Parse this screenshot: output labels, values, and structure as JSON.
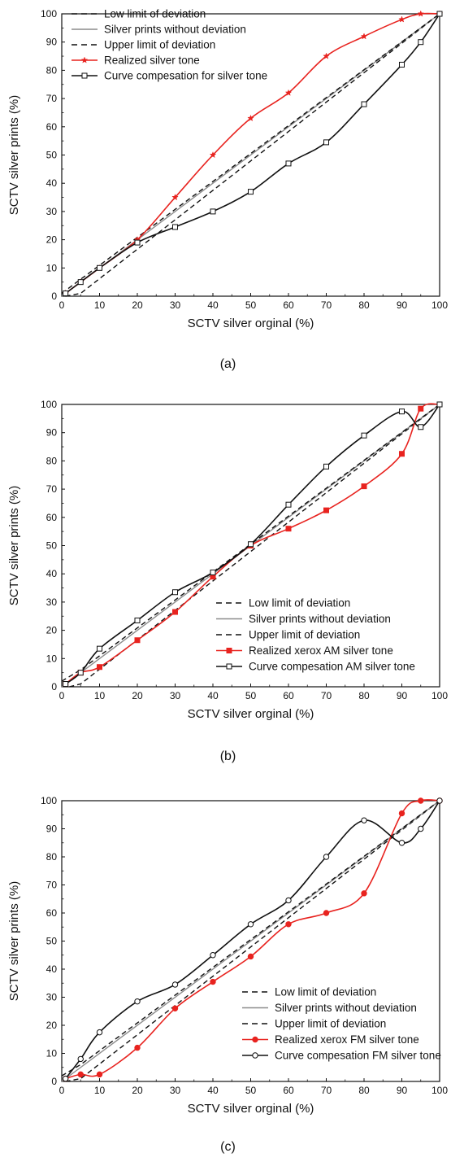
{
  "chart_data": [
    {
      "type": "line",
      "caption": "(a)",
      "xlabel": "SCTV silver orginal (%)",
      "ylabel": "SCTV silver prints (%)",
      "xlim": [
        0,
        100
      ],
      "ylim": [
        0,
        100
      ],
      "xticks": [
        0,
        10,
        20,
        30,
        40,
        50,
        60,
        70,
        80,
        90,
        100
      ],
      "yticks": [
        0,
        10,
        20,
        30,
        40,
        50,
        60,
        70,
        80,
        90,
        100
      ],
      "grid": false,
      "legend_position": "top-left",
      "series": [
        {
          "name": "Low limit of deviation",
          "color": "#111111",
          "style": "dashed",
          "marker": "none",
          "x": [
            1,
            5,
            100
          ],
          "y": [
            0,
            1,
            100
          ]
        },
        {
          "name": "Silver prints without deviation",
          "color": "#8c8c8c",
          "style": "solid",
          "marker": "none",
          "x": [
            0,
            100
          ],
          "y": [
            0,
            100
          ]
        },
        {
          "name": "Upper limit of deviation",
          "color": "#111111",
          "style": "dashed",
          "marker": "none",
          "x": [
            0,
            5,
            100
          ],
          "y": [
            1,
            6,
            100
          ]
        },
        {
          "name": "Realized silver tone",
          "color": "#e8231f",
          "style": "solid",
          "marker": "star",
          "x": [
            1,
            5,
            10,
            20,
            30,
            40,
            50,
            60,
            70,
            80,
            90,
            95,
            100
          ],
          "y": [
            1,
            5,
            10,
            20,
            35,
            50,
            63,
            72,
            85,
            92,
            98,
            100,
            100
          ]
        },
        {
          "name": "Curve compesation for silver tone",
          "color": "#111111",
          "style": "solid",
          "marker": "open-square",
          "x": [
            1,
            5,
            10,
            20,
            30,
            40,
            50,
            60,
            70,
            80,
            90,
            95,
            100
          ],
          "y": [
            1,
            5,
            10,
            19,
            24.5,
            30,
            37,
            47,
            54.5,
            68,
            82,
            90,
            100
          ]
        }
      ]
    },
    {
      "type": "line",
      "caption": "(b)",
      "xlabel": "SCTV silver orginal (%)",
      "ylabel": "SCTV silver prints (%)",
      "xlim": [
        0,
        100
      ],
      "ylim": [
        0,
        100
      ],
      "xticks": [
        0,
        10,
        20,
        30,
        40,
        50,
        60,
        70,
        80,
        90,
        100
      ],
      "yticks": [
        0,
        10,
        20,
        30,
        40,
        50,
        60,
        70,
        80,
        90,
        100
      ],
      "grid": false,
      "legend_position": "bottom-right",
      "series": [
        {
          "name": "Low limit of deviation",
          "color": "#111111",
          "style": "dashed",
          "marker": "none",
          "x": [
            2,
            5,
            100
          ],
          "y": [
            0,
            1,
            100
          ]
        },
        {
          "name": "Silver prints without deviation",
          "color": "#8c8c8c",
          "style": "solid",
          "marker": "none",
          "x": [
            0,
            100
          ],
          "y": [
            0,
            100
          ]
        },
        {
          "name": "Upper limit of deviation",
          "color": "#111111",
          "style": "dashed",
          "marker": "none",
          "x": [
            0,
            5,
            100
          ],
          "y": [
            2,
            6,
            100
          ]
        },
        {
          "name": "Realized xerox AM silver tone",
          "color": "#e8231f",
          "style": "solid",
          "marker": "filled-square",
          "x": [
            1,
            5,
            10,
            20,
            30,
            40,
            50,
            60,
            70,
            80,
            90,
            95,
            100
          ],
          "y": [
            1,
            5,
            7,
            16.5,
            26.5,
            39,
            50,
            56,
            62.5,
            71,
            82.5,
            98.5,
            100
          ]
        },
        {
          "name": "Curve compesation AM silver tone",
          "color": "#111111",
          "style": "solid",
          "marker": "open-square",
          "x": [
            1,
            5,
            10,
            20,
            30,
            40,
            50,
            60,
            70,
            80,
            90,
            95,
            100
          ],
          "y": [
            1,
            5,
            13.5,
            23.5,
            33.5,
            40.5,
            50.5,
            64.5,
            78,
            89,
            97.5,
            92,
            100
          ]
        }
      ]
    },
    {
      "type": "line",
      "caption": "(c)",
      "xlabel": "SCTV silver orginal (%)",
      "ylabel": "SCTV silver prints (%)",
      "xlim": [
        0,
        100
      ],
      "ylim": [
        0,
        100
      ],
      "xticks": [
        0,
        10,
        20,
        30,
        40,
        50,
        60,
        70,
        80,
        90,
        100
      ],
      "yticks": [
        0,
        10,
        20,
        30,
        40,
        50,
        60,
        70,
        80,
        90,
        100
      ],
      "grid": false,
      "legend_position": "bottom-right",
      "series": [
        {
          "name": "Low limit of deviation",
          "color": "#111111",
          "style": "dashed",
          "marker": "none",
          "x": [
            1,
            5,
            100
          ],
          "y": [
            0,
            1,
            100
          ]
        },
        {
          "name": "Silver prints without deviation",
          "color": "#8c8c8c",
          "style": "solid",
          "marker": "none",
          "x": [
            0,
            100
          ],
          "y": [
            0,
            100
          ]
        },
        {
          "name": "Upper limit of deviation",
          "color": "#111111",
          "style": "dashed",
          "marker": "none",
          "x": [
            0,
            5,
            100
          ],
          "y": [
            2,
            6,
            100
          ]
        },
        {
          "name": "Realized xerox FM silver tone",
          "color": "#e8231f",
          "style": "solid",
          "marker": "filled-circle",
          "x": [
            1,
            5,
            10,
            20,
            30,
            40,
            50,
            60,
            70,
            80,
            90,
            95,
            100
          ],
          "y": [
            1,
            2.5,
            2.5,
            12,
            26,
            35.5,
            44.5,
            56,
            60,
            67,
            95.5,
            100,
            100
          ]
        },
        {
          "name": "Curve compesation FM silver tone",
          "color": "#111111",
          "style": "solid",
          "marker": "open-circle",
          "x": [
            1,
            5,
            10,
            20,
            30,
            40,
            50,
            60,
            70,
            80,
            90,
            95,
            100
          ],
          "y": [
            1,
            8,
            17.5,
            28.5,
            34.5,
            45,
            56,
            64.5,
            80,
            93,
            85,
            90,
            100
          ]
        }
      ]
    }
  ]
}
